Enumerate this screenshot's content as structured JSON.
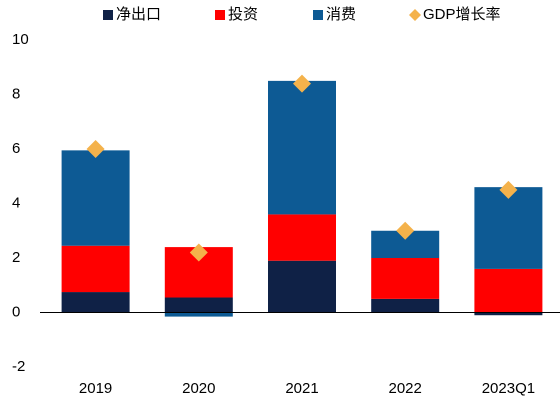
{
  "chart_data": {
    "type": "bar",
    "stacked": true,
    "categories": [
      "2019",
      "2020",
      "2021",
      "2022",
      "2023Q1"
    ],
    "series": [
      {
        "name": "净出口",
        "color": "#0f2146",
        "values": [
          0.75,
          0.55,
          1.9,
          0.5,
          -0.1
        ]
      },
      {
        "name": "投资",
        "color": "#ff0000",
        "values": [
          1.7,
          1.85,
          1.7,
          1.5,
          1.6
        ]
      },
      {
        "name": "消费",
        "color": "#0d5a94",
        "values": [
          3.5,
          -0.15,
          4.9,
          1.0,
          3.0
        ]
      },
      {
        "name": "GDP增长率",
        "color": "#f4b24b",
        "type": "scatter",
        "marker": "diamond",
        "values": [
          6.0,
          2.2,
          8.4,
          3.0,
          4.5
        ]
      }
    ],
    "ylim": [
      -2,
      10
    ],
    "yticks": [
      -2,
      0,
      2,
      4,
      6,
      8,
      10
    ],
    "grid": false,
    "legend": "top"
  }
}
